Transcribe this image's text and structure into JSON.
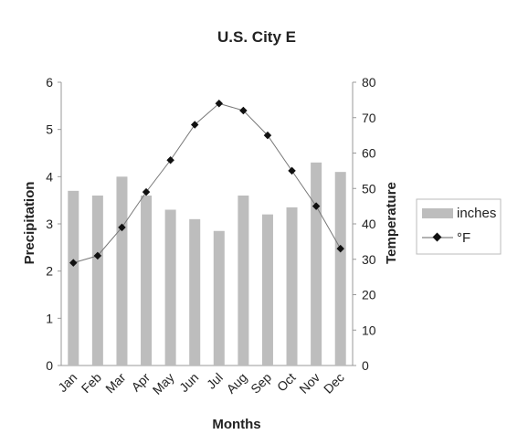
{
  "chart_data": {
    "type": "bar",
    "title": "U.S. City E",
    "xlabel": "Months",
    "ylabel": "Precipitation",
    "y2label": "Temperature",
    "categories": [
      "Jan",
      "Feb",
      "Mar",
      "Apr",
      "May",
      "Jun",
      "Jul",
      "Aug",
      "Sep",
      "Oct",
      "Nov",
      "Dec"
    ],
    "ylim": [
      0,
      6
    ],
    "y2lim": [
      0,
      80
    ],
    "yticks": [
      "0",
      "1",
      "2",
      "3",
      "4",
      "5",
      "6"
    ],
    "y2ticks": [
      "0",
      "10",
      "20",
      "30",
      "40",
      "50",
      "60",
      "70",
      "80"
    ],
    "series": [
      {
        "name": "inches",
        "type": "bar",
        "axis": "left",
        "color": "#bdbdbd",
        "values": [
          3.7,
          3.6,
          4.0,
          3.6,
          3.3,
          3.1,
          2.85,
          3.6,
          3.2,
          3.35,
          4.3,
          4.1
        ]
      },
      {
        "name": "°F",
        "type": "line",
        "axis": "right",
        "color": "#111111",
        "values": [
          29,
          31,
          39,
          49,
          58,
          68,
          74,
          72,
          65,
          55,
          45,
          33
        ]
      }
    ],
    "legend_position": "right",
    "grid": false
  }
}
